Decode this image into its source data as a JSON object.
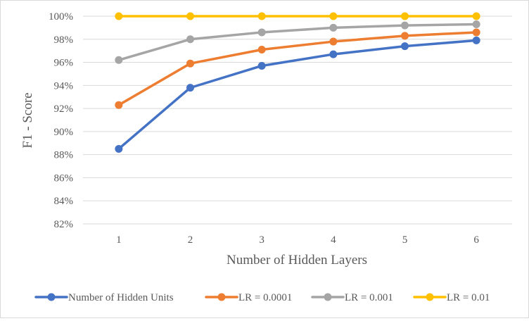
{
  "chart_data": {
    "type": "line",
    "title": "",
    "xlabel": "Number of Hidden Layers",
    "ylabel": "F1 - Score",
    "categories": [
      "1",
      "2",
      "3",
      "4",
      "5",
      "6"
    ],
    "ylim": [
      0.82,
      1.0
    ],
    "yticks": [
      0.82,
      0.84,
      0.86,
      0.88,
      0.9,
      0.92,
      0.94,
      0.96,
      0.98,
      1.0
    ],
    "ytick_labels": [
      "82%",
      "84%",
      "86%",
      "88%",
      "90%",
      "92%",
      "94%",
      "96%",
      "98%",
      "100%"
    ],
    "grid": true,
    "legend_position": "bottom",
    "series": [
      {
        "name": "Number of Hidden Units",
        "color": "#4472C4",
        "values": [
          0.885,
          0.938,
          0.957,
          0.967,
          0.974,
          0.979
        ]
      },
      {
        "name": "LR = 0.0001",
        "color": "#ED7D31",
        "values": [
          0.923,
          0.959,
          0.971,
          0.978,
          0.983,
          0.986
        ]
      },
      {
        "name": "LR = 0.001",
        "color": "#A5A5A5",
        "values": [
          0.962,
          0.98,
          0.986,
          0.99,
          0.992,
          0.993
        ]
      },
      {
        "name": "LR = 0.01",
        "color": "#FFC000",
        "values": [
          1.0,
          1.0,
          1.0,
          1.0,
          1.0,
          1.0
        ]
      }
    ]
  }
}
